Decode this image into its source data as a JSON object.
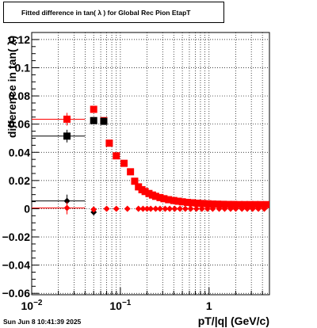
{
  "header": {
    "title": "Fitted difference in tan( λ ) for Global Rec Pion EtapT"
  },
  "footer": {
    "timestamp": "Sun Jun  8 10:41:39 2025"
  },
  "colors": {
    "red": "#ff0000",
    "black": "#000000",
    "grid": "#000000"
  },
  "chart_data": {
    "type": "scatter",
    "xlabel": "pT/|q| (GeV/c)",
    "ylabel": "difference in tan( λ)",
    "xscale": "log",
    "xlim": [
      0.01,
      4.8
    ],
    "ylim": [
      -0.061,
      0.125
    ],
    "grid": true,
    "x_ticks": [
      {
        "value": 0.01,
        "label": "10^-2"
      },
      {
        "value": 0.1,
        "label": "10^-1"
      },
      {
        "value": 1,
        "label": "1"
      }
    ],
    "y_ticks": [
      {
        "value": -0.06,
        "label": "−0.06"
      },
      {
        "value": -0.04,
        "label": "−0.04"
      },
      {
        "value": -0.02,
        "label": "−0.02"
      },
      {
        "value": 0,
        "label": "0"
      },
      {
        "value": 0.02,
        "label": "0.02"
      },
      {
        "value": 0.04,
        "label": "0.04"
      },
      {
        "value": 0.06,
        "label": "0.06"
      },
      {
        "value": 0.08,
        "label": "0.08"
      },
      {
        "value": 0.1,
        "label": "0.1"
      },
      {
        "value": 0.12,
        "label": "0.12"
      }
    ],
    "series": [
      {
        "color": "#ff0000",
        "marker": "square",
        "points": [
          {
            "x": 0.025,
            "y": 0.0635,
            "xerr": [
              0.01,
              0.04
            ]
          },
          {
            "x": 0.05,
            "y": 0.0705
          },
          {
            "x": 0.065,
            "y": 0.0625
          },
          {
            "x": 0.075,
            "y": 0.0465
          },
          {
            "x": 0.09,
            "y": 0.0375
          },
          {
            "x": 0.11,
            "y": 0.0322
          },
          {
            "x": 0.13,
            "y": 0.0262
          },
          {
            "x": 0.145,
            "y": 0.0195
          },
          {
            "x": 0.16,
            "y": 0.0155
          },
          {
            "x": 0.175,
            "y": 0.0135
          },
          {
            "x": 0.19,
            "y": 0.0122
          },
          {
            "x": 0.21,
            "y": 0.0108
          },
          {
            "x": 0.23,
            "y": 0.0097
          },
          {
            "x": 0.25,
            "y": 0.0088
          },
          {
            "x": 0.28,
            "y": 0.0079
          },
          {
            "x": 0.31,
            "y": 0.0071
          },
          {
            "x": 0.35,
            "y": 0.0064
          },
          {
            "x": 0.4,
            "y": 0.0058
          },
          {
            "x": 0.45,
            "y": 0.0053
          },
          {
            "x": 0.5,
            "y": 0.0049
          },
          {
            "x": 0.57,
            "y": 0.0045
          },
          {
            "x": 0.65,
            "y": 0.0042
          },
          {
            "x": 0.74,
            "y": 0.0039
          },
          {
            "x": 0.85,
            "y": 0.0037
          },
          {
            "x": 0.97,
            "y": 0.0035
          },
          {
            "x": 1.1,
            "y": 0.0033
          },
          {
            "x": 1.25,
            "y": 0.0032
          },
          {
            "x": 1.45,
            "y": 0.0031
          },
          {
            "x": 1.65,
            "y": 0.003
          },
          {
            "x": 1.9,
            "y": 0.003
          },
          {
            "x": 2.2,
            "y": 0.0029
          },
          {
            "x": 2.5,
            "y": 0.0029
          },
          {
            "x": 2.9,
            "y": 0.0029
          },
          {
            "x": 3.3,
            "y": 0.0029
          },
          {
            "x": 3.8,
            "y": 0.0029
          },
          {
            "x": 4.4,
            "y": 0.0029
          }
        ]
      },
      {
        "color": "#000000",
        "marker": "square",
        "points": [
          {
            "x": 0.025,
            "y": 0.0515,
            "xerr": [
              0.01,
              0.04
            ]
          },
          {
            "x": 0.05,
            "y": 0.0625
          },
          {
            "x": 0.065,
            "y": 0.062
          }
        ]
      },
      {
        "color": "#000000",
        "marker": "diamond",
        "points": [
          {
            "x": 0.025,
            "y": 0.0055,
            "xerr": [
              0.01,
              0.04
            ]
          },
          {
            "x": 0.05,
            "y": -0.0025
          }
        ]
      },
      {
        "color": "#ff0000",
        "marker": "diamond",
        "points": [
          {
            "x": 0.025,
            "y": 0.0005,
            "xerr": [
              0.01,
              0.04
            ]
          },
          {
            "x": 0.05,
            "y": -0.0005
          },
          {
            "x": 0.07,
            "y": 0.0
          },
          {
            "x": 0.09,
            "y": 0.0
          },
          {
            "x": 0.12,
            "y": 0.0
          },
          {
            "x": 0.16,
            "y": 0.0
          },
          {
            "x": 0.18,
            "y": 0.0
          },
          {
            "x": 0.2,
            "y": 0.0
          },
          {
            "x": 0.22,
            "y": 0.0
          },
          {
            "x": 0.25,
            "y": 0.0
          },
          {
            "x": 0.28,
            "y": 0.0
          },
          {
            "x": 0.32,
            "y": 0.0
          },
          {
            "x": 0.36,
            "y": 0.0
          },
          {
            "x": 0.41,
            "y": 0.0
          },
          {
            "x": 0.47,
            "y": 0.0
          },
          {
            "x": 0.54,
            "y": 0.0
          },
          {
            "x": 0.62,
            "y": 0.0
          },
          {
            "x": 0.72,
            "y": 0.0
          },
          {
            "x": 0.83,
            "y": 0.0
          },
          {
            "x": 0.96,
            "y": 0.0
          },
          {
            "x": 1.1,
            "y": 0.0
          },
          {
            "x": 1.3,
            "y": 0.0
          },
          {
            "x": 1.5,
            "y": 0.0
          },
          {
            "x": 1.75,
            "y": 0.0
          },
          {
            "x": 2.0,
            "y": 0.0
          },
          {
            "x": 2.35,
            "y": 0.0
          },
          {
            "x": 2.7,
            "y": 0.0
          },
          {
            "x": 3.1,
            "y": 0.0
          },
          {
            "x": 3.6,
            "y": 0.0
          },
          {
            "x": 4.2,
            "y": 0.0
          }
        ]
      }
    ]
  }
}
